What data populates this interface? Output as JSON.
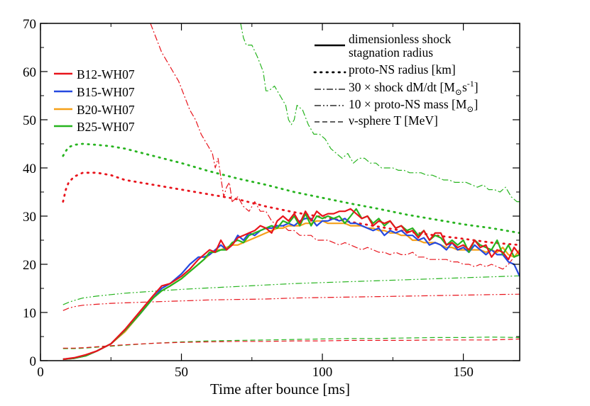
{
  "chart_data": {
    "type": "line",
    "xlabel": "Time after bounce [ms]",
    "ylabel": "",
    "xlim": [
      0,
      170
    ],
    "ylim": [
      0,
      70
    ],
    "xticks": [
      0,
      50,
      100,
      150
    ],
    "yticks": [
      0,
      10,
      20,
      30,
      40,
      50,
      60,
      70
    ],
    "grid": false,
    "models": [
      {
        "name": "B12-WH07",
        "color": "#e8141c"
      },
      {
        "name": "B15-WH07",
        "color": "#2549e0"
      },
      {
        "name": "B20-WH07",
        "color": "#f5a019"
      },
      {
        "name": "B25-WH07",
        "color": "#27b41f"
      }
    ],
    "quantities": [
      {
        "key": "shock",
        "label_line1": "dimensionless shock",
        "label_line2": "stagnation radius",
        "dash": "solid"
      },
      {
        "key": "pns_radius",
        "label": "proto-NS radius [km]",
        "dash": "dotted"
      },
      {
        "key": "dmdt",
        "label": "30 × shock dM/dt [M",
        "label_sub": "⊙",
        "label_tail": "s",
        "label_sup": "-1",
        "label_end": "]",
        "dash": "dash-dot"
      },
      {
        "key": "pns_mass",
        "label": "10 × proto-NS mass [M",
        "label_sub": "⊙",
        "label_end": "]",
        "dash": "dash-dot-dot"
      },
      {
        "key": "nu_T",
        "label": "ν-sphere T [MeV]",
        "dash": "dashed"
      }
    ],
    "series": [
      {
        "name": "B12-WH07 shock",
        "model": "B12-WH07",
        "quantity": "shock",
        "x": [
          8,
          12,
          16,
          20,
          25,
          30,
          35,
          40,
          43,
          46,
          50,
          53,
          56,
          58,
          60,
          62,
          64,
          66,
          68,
          70,
          72,
          74,
          76,
          78,
          80,
          82,
          84,
          86,
          88,
          90,
          92,
          94,
          96,
          98,
          100,
          102,
          104,
          106,
          108,
          110,
          112,
          114,
          116,
          118,
          120,
          122,
          124,
          126,
          128,
          130,
          132,
          134,
          136,
          138,
          140,
          142,
          144,
          146,
          148,
          150,
          152,
          154,
          156,
          158,
          160,
          162,
          164,
          166,
          168,
          170
        ],
        "y": [
          0.3,
          0.6,
          1.2,
          2,
          3.5,
          6.5,
          10,
          13.5,
          15.5,
          16,
          17.5,
          19,
          21,
          22,
          23,
          22.5,
          25,
          23,
          24,
          25.5,
          26,
          26.5,
          27,
          28,
          27.5,
          26.5,
          29,
          30,
          29,
          30.5,
          28.5,
          31,
          29,
          31,
          30,
          30.5,
          30.5,
          31,
          31,
          31.5,
          30.5,
          29.5,
          30,
          28,
          29,
          28.5,
          29,
          27.5,
          28,
          26.5,
          27,
          25.5,
          27,
          25,
          26.5,
          26.5,
          24,
          24.5,
          23.5,
          24,
          23,
          25,
          23.5,
          24,
          21.5,
          23,
          22.5,
          21,
          23.5,
          22
        ]
      },
      {
        "name": "B15-WH07 shock",
        "model": "B15-WH07",
        "quantity": "shock",
        "x": [
          8,
          12,
          16,
          20,
          25,
          30,
          35,
          40,
          43,
          46,
          50,
          53,
          56,
          58,
          60,
          62,
          64,
          66,
          68,
          70,
          72,
          74,
          76,
          78,
          80,
          82,
          84,
          86,
          88,
          90,
          92,
          94,
          96,
          98,
          100,
          102,
          104,
          106,
          108,
          110,
          112,
          114,
          116,
          118,
          120,
          122,
          124,
          126,
          128,
          130,
          132,
          134,
          136,
          138,
          140,
          142,
          144,
          146,
          148,
          150,
          152,
          154,
          156,
          158,
          160,
          162,
          164,
          166,
          168,
          170
        ],
        "y": [
          0.3,
          0.5,
          1,
          2,
          3.5,
          6.3,
          9.5,
          13,
          15,
          16,
          18,
          20,
          21.5,
          21.5,
          22,
          23,
          24,
          23,
          24,
          26,
          25,
          26.5,
          26,
          27,
          27.5,
          27.5,
          28,
          28,
          28.5,
          28,
          29,
          29.5,
          29.5,
          28,
          29,
          29,
          29.5,
          29,
          29.5,
          28.5,
          28.5,
          28,
          27.5,
          27,
          27.5,
          26,
          27,
          26.5,
          27,
          26,
          26,
          25,
          25.5,
          24,
          24.5,
          24,
          23,
          24.5,
          23,
          23.5,
          22.5,
          24,
          23,
          22,
          23,
          22,
          22,
          20.5,
          20,
          17.5
        ]
      },
      {
        "name": "B20-WH07 shock",
        "model": "B20-WH07",
        "quantity": "shock",
        "x": [
          8,
          12,
          16,
          20,
          25,
          30,
          35,
          40,
          43,
          46,
          50,
          53,
          56,
          58,
          60,
          62,
          64,
          66,
          68,
          70,
          72,
          74,
          76,
          78,
          80,
          82,
          84,
          86,
          88,
          90,
          92,
          94,
          96,
          98,
          100,
          102,
          104,
          106,
          108,
          110,
          112,
          114,
          116,
          118,
          120,
          122,
          124,
          126,
          128,
          130,
          132,
          134,
          136,
          138,
          140,
          142,
          144,
          146,
          148,
          150,
          152,
          154,
          156,
          158,
          160,
          162,
          164,
          166,
          168,
          170
        ],
        "y": [
          0.3,
          0.5,
          1,
          2,
          3.5,
          6,
          9.5,
          13,
          14.5,
          15.5,
          17,
          18.5,
          20,
          21,
          22,
          23,
          23,
          23.5,
          24,
          24,
          24.5,
          25,
          25.5,
          26,
          26.5,
          27,
          27.5,
          27.5,
          28,
          28,
          28,
          28.5,
          28.5,
          29,
          29,
          28.5,
          28.5,
          28.5,
          28.5,
          28,
          28,
          28,
          27.5,
          27.5,
          27,
          27,
          26.5,
          26.5,
          26,
          26,
          25,
          25,
          24.5,
          24.5,
          24.5,
          24,
          23.5,
          23.5,
          23,
          23,
          23,
          23,
          23,
          22.5,
          23,
          22.5,
          23.5,
          22,
          21.5,
          23
        ]
      },
      {
        "name": "B25-WH07 shock",
        "model": "B25-WH07",
        "quantity": "shock",
        "x": [
          8,
          12,
          16,
          20,
          25,
          30,
          35,
          40,
          43,
          46,
          50,
          53,
          56,
          58,
          60,
          62,
          64,
          66,
          68,
          70,
          72,
          74,
          76,
          78,
          80,
          82,
          84,
          86,
          88,
          90,
          92,
          94,
          96,
          98,
          100,
          102,
          104,
          106,
          108,
          110,
          112,
          114,
          116,
          118,
          120,
          122,
          124,
          126,
          128,
          130,
          132,
          134,
          136,
          138,
          140,
          142,
          144,
          146,
          148,
          150,
          152,
          154,
          156,
          158,
          160,
          162,
          164,
          166,
          168,
          170
        ],
        "y": [
          0.3,
          0.5,
          1,
          2,
          3.5,
          6.3,
          9.5,
          13,
          14.5,
          15.5,
          17,
          18.5,
          20,
          21,
          22.5,
          22.5,
          23,
          23,
          24.5,
          25,
          24.5,
          26,
          26.5,
          27,
          27.5,
          28,
          27.5,
          29,
          28.5,
          30,
          28,
          30.5,
          28,
          30,
          29.5,
          30,
          29.5,
          30,
          28.5,
          30,
          31.5,
          29.5,
          30,
          28.5,
          29.5,
          28,
          29,
          27.5,
          28,
          27,
          27.5,
          26,
          27,
          25,
          26,
          25.5,
          24,
          25,
          24,
          25,
          22.5,
          25,
          24,
          23.5,
          23,
          25,
          22,
          24,
          21.5,
          22
        ]
      },
      {
        "name": "B12-WH07 proto-NS radius",
        "model": "B12-WH07",
        "quantity": "pns_radius",
        "x": [
          8,
          9,
          10,
          12,
          15,
          20,
          25,
          30,
          40,
          50,
          60,
          70,
          80,
          90,
          100,
          110,
          120,
          130,
          140,
          150,
          160,
          170
        ],
        "y": [
          33,
          35.5,
          37,
          38.2,
          39,
          39,
          38.5,
          37.5,
          36.5,
          35.5,
          34.5,
          33.5,
          32,
          30.8,
          29.8,
          28.8,
          27.8,
          26.8,
          26,
          25.3,
          24.5,
          24
        ]
      },
      {
        "name": "B25-WH07 proto-NS radius",
        "model": "B25-WH07",
        "quantity": "pns_radius",
        "x": [
          8,
          9,
          10,
          12,
          15,
          20,
          25,
          30,
          40,
          50,
          60,
          70,
          80,
          90,
          100,
          110,
          120,
          130,
          140,
          150,
          160,
          170
        ],
        "y": [
          42.5,
          43.5,
          44.3,
          44.8,
          45,
          44.8,
          44.5,
          44,
          42.5,
          41,
          39.3,
          37.8,
          36.5,
          35,
          33.8,
          32.6,
          31.5,
          30.3,
          29.3,
          28.3,
          27.5,
          26.5
        ]
      },
      {
        "name": "B12-WH07 shock dM/dt",
        "model": "B12-WH07",
        "quantity": "dmdt",
        "x": [
          39,
          41,
          43,
          45,
          47,
          49,
          51,
          53,
          55,
          57,
          59,
          61,
          62,
          63,
          64,
          65,
          66,
          67,
          68,
          70,
          72,
          74,
          76,
          78,
          80,
          82,
          84,
          86,
          88,
          90,
          92,
          94,
          96,
          98,
          100,
          102,
          104,
          106,
          108,
          110,
          112,
          114,
          116,
          118,
          120,
          122,
          124,
          126,
          128,
          130,
          132,
          134,
          136,
          138,
          140,
          142,
          144,
          146,
          148,
          150,
          152,
          154,
          156,
          158,
          160,
          162,
          164,
          166,
          168,
          170
        ],
        "y": [
          70,
          67,
          64,
          62,
          60,
          58,
          55,
          52,
          50,
          47,
          45,
          43,
          40,
          42,
          38,
          34,
          36,
          37,
          33,
          34,
          32,
          31,
          33,
          31,
          31,
          29,
          28,
          28,
          27,
          27,
          26,
          26,
          26,
          25,
          25,
          25,
          24.5,
          24,
          24.5,
          24,
          23.5,
          23,
          23.5,
          23,
          22.5,
          22.5,
          22,
          22.5,
          22,
          22,
          22.5,
          21.5,
          21.5,
          21,
          21,
          21,
          21,
          20.5,
          20.5,
          20,
          20,
          19.5,
          20,
          19.5,
          20,
          19.5,
          19,
          20,
          21.5,
          22
        ]
      },
      {
        "name": "B25-WH07 shock dM/dt",
        "model": "B25-WH07",
        "quantity": "dmdt",
        "x": [
          71,
          72,
          73,
          75,
          77,
          79,
          80,
          81,
          83,
          85,
          87,
          88,
          89,
          90,
          91,
          93,
          95,
          97,
          99,
          101,
          103,
          105,
          107,
          109,
          111,
          113,
          115,
          117,
          119,
          121,
          123,
          125,
          127,
          129,
          131,
          133,
          135,
          137,
          139,
          141,
          143,
          145,
          147,
          149,
          151,
          153,
          155,
          157,
          159,
          161,
          163,
          165,
          167,
          169,
          170
        ],
        "y": [
          70,
          67,
          65.5,
          65.5,
          63,
          60,
          56,
          56,
          57,
          55,
          53,
          50,
          49,
          50,
          53,
          52,
          49,
          47,
          47,
          46,
          44,
          43,
          42,
          43,
          41,
          42,
          42,
          41,
          41,
          40,
          40,
          40,
          39.5,
          39.5,
          39,
          39,
          39,
          38.5,
          38.5,
          38,
          37.5,
          37.5,
          37,
          37,
          37,
          36.5,
          36,
          36.5,
          35.5,
          35.5,
          35,
          36,
          34,
          33,
          33
        ]
      },
      {
        "name": "B12-WH07 proto-NS mass",
        "model": "B12-WH07",
        "quantity": "pns_mass",
        "x": [
          8,
          10,
          12,
          15,
          20,
          25,
          30,
          40,
          50,
          60,
          70,
          80,
          90,
          100,
          110,
          120,
          130,
          140,
          150,
          160,
          170
        ],
        "y": [
          10.4,
          10.9,
          11.2,
          11.5,
          11.7,
          11.9,
          12,
          12.2,
          12.4,
          12.6,
          12.7,
          12.8,
          13,
          13.1,
          13.2,
          13.3,
          13.4,
          13.5,
          13.6,
          13.7,
          13.8
        ]
      },
      {
        "name": "B25-WH07 proto-NS mass",
        "model": "B25-WH07",
        "quantity": "pns_mass",
        "x": [
          8,
          10,
          12,
          15,
          20,
          25,
          30,
          40,
          50,
          60,
          70,
          80,
          90,
          100,
          110,
          120,
          130,
          140,
          150,
          160,
          170
        ],
        "y": [
          11.6,
          12.1,
          12.5,
          13,
          13.4,
          13.7,
          14,
          14.4,
          14.8,
          15.1,
          15.4,
          15.7,
          16,
          16.2,
          16.4,
          16.6,
          16.8,
          17,
          17.2,
          17.4,
          17.6
        ]
      },
      {
        "name": "B12-WH07 ν-sphere T",
        "model": "B12-WH07",
        "quantity": "nu_T",
        "x": [
          8,
          12,
          16,
          20,
          25,
          30,
          40,
          50,
          60,
          70,
          80,
          90,
          100,
          110,
          120,
          130,
          140,
          150,
          160,
          170
        ],
        "y": [
          2.6,
          2.6,
          2.7,
          2.9,
          3.1,
          3.3,
          3.6,
          3.8,
          3.9,
          4,
          4,
          4.1,
          4.1,
          4.2,
          4.2,
          4.2,
          4.3,
          4.3,
          4.3,
          4.5
        ]
      },
      {
        "name": "B25-WH07 ν-sphere T",
        "model": "B25-WH07",
        "quantity": "nu_T",
        "x": [
          8,
          12,
          16,
          20,
          25,
          30,
          40,
          50,
          60,
          70,
          80,
          90,
          100,
          110,
          120,
          130,
          140,
          150,
          160,
          170
        ],
        "y": [
          2.5,
          2.5,
          2.6,
          2.8,
          3,
          3.2,
          3.6,
          3.9,
          4.1,
          4.2,
          4.3,
          4.4,
          4.5,
          4.6,
          4.6,
          4.7,
          4.8,
          4.8,
          4.9,
          4.8
        ]
      }
    ]
  }
}
